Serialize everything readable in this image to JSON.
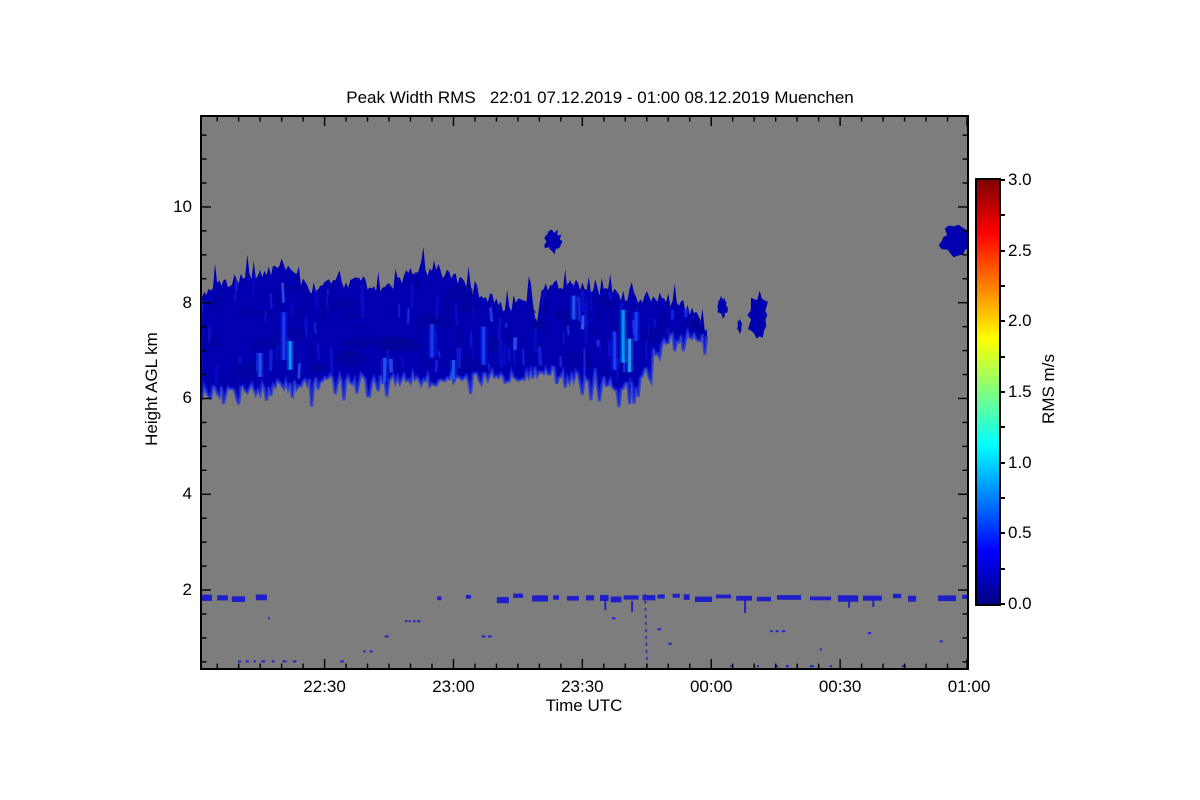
{
  "window": {
    "background": "#ffffff",
    "text_color": "#000000"
  },
  "chart_data": {
    "type": "heatmap",
    "title": "Peak Width RMS   22:01 07.12.2019 - 01:00 08.12.2019 Muenchen",
    "xlabel": "Time UTC",
    "ylabel": "Height AGL km",
    "x_start": "22:01 07.12.2019",
    "x_end": "01:00 08.12.2019",
    "site": "Muenchen",
    "quantity": "Peak Width RMS",
    "x_range_minutes_after_2200": [
      1,
      180
    ],
    "x_ticks": [
      {
        "label": "22:30",
        "minutes_after_2200": 30
      },
      {
        "label": "23:00",
        "minutes_after_2200": 60
      },
      {
        "label": "23:30",
        "minutes_after_2200": 90
      },
      {
        "label": "00:00",
        "minutes_after_2200": 120
      },
      {
        "label": "00:30",
        "minutes_after_2200": 150
      },
      {
        "label": "01:00",
        "minutes_after_2200": 180
      }
    ],
    "x_minor_tick_step_min": 5,
    "y_range_km": [
      0.33,
      11.92
    ],
    "y_ticks": [
      2,
      4,
      6,
      8,
      10
    ],
    "y_minor_tick_step_km": 0.5,
    "grid": false,
    "legend": "colorbar right",
    "no_data_color": "#7d7d7d",
    "colorbar": {
      "label": "RMS m/s",
      "range": [
        0.0,
        3.0
      ],
      "ticks": [
        "0.0",
        "0.5",
        "1.0",
        "1.5",
        "2.0",
        "2.5",
        "3.0"
      ],
      "minor_tick_step": 0.25,
      "colormap": "jet",
      "gradient_stops": [
        {
          "pos": 0.0,
          "color": "#000083"
        },
        {
          "pos": 0.125,
          "color": "#0000ff"
        },
        {
          "pos": 0.375,
          "color": "#00ffff"
        },
        {
          "pos": 0.625,
          "color": "#ffff00"
        },
        {
          "pos": 0.875,
          "color": "#ff0000"
        },
        {
          "pos": 1.0,
          "color": "#800000"
        }
      ]
    },
    "features": {
      "description": "Cirrus-like cloud layer 6.1-8.9 km AGL from 22:01 to ~00:00 with Peak Width RMS mostly 0.0-0.5 m/s (dark blue), detached cloud patches near 7.8 km (00:00-00:12) and 9.3 km (23:23 and ~00:56-01:00), thin boundary-layer echo near 1.8 km, scattered specks below 1.5 km; gray = no data",
      "main_cloud": {
        "time_span_min": [
          1,
          119
        ],
        "height_span_km": [
          6.1,
          8.9
        ],
        "value_range_ms": [
          0.0,
          0.6
        ],
        "base_color": "#0000b0",
        "fringe_color": "#1e32e6",
        "top_profile": [
          [
            1,
            8.05
          ],
          [
            3,
            8.3
          ],
          [
            6,
            8.4
          ],
          [
            9,
            8.5
          ],
          [
            12,
            8.55
          ],
          [
            15,
            8.6
          ],
          [
            18,
            8.7
          ],
          [
            20,
            8.85
          ],
          [
            22,
            8.6
          ],
          [
            25,
            8.42
          ],
          [
            27,
            8.3
          ],
          [
            30,
            8.36
          ],
          [
            33,
            8.46
          ],
          [
            36,
            8.4
          ],
          [
            39,
            8.44
          ],
          [
            42,
            8.3
          ],
          [
            45,
            8.34
          ],
          [
            48,
            8.52
          ],
          [
            50,
            8.66
          ],
          [
            52,
            8.7
          ],
          [
            55,
            8.64
          ],
          [
            58,
            8.58
          ],
          [
            61,
            8.5
          ],
          [
            64,
            8.3
          ],
          [
            67,
            8.05
          ],
          [
            69,
            8.12
          ],
          [
            71,
            7.95
          ],
          [
            74,
            7.86
          ],
          [
            76,
            8.06
          ],
          [
            78,
            8.15
          ],
          [
            79.5,
            7.62
          ],
          [
            81,
            8.28
          ],
          [
            83,
            8.34
          ],
          [
            85,
            8.42
          ],
          [
            87,
            8.3
          ],
          [
            89,
            8.38
          ],
          [
            91,
            8.33
          ],
          [
            93,
            8.2
          ],
          [
            95,
            8.32
          ],
          [
            97,
            8.28
          ],
          [
            99,
            8.12
          ],
          [
            101,
            8.2
          ],
          [
            103,
            8.05
          ],
          [
            105,
            8.15
          ],
          [
            107,
            7.98
          ],
          [
            109,
            8.05
          ],
          [
            111,
            7.9
          ],
          [
            113,
            7.98
          ],
          [
            115,
            7.85
          ],
          [
            117,
            7.7
          ],
          [
            119,
            7.45
          ]
        ],
        "bottom_profile": [
          [
            1,
            6.2
          ],
          [
            3,
            6.1
          ],
          [
            6,
            6.18
          ],
          [
            9,
            6.15
          ],
          [
            12,
            6.22
          ],
          [
            15,
            6.2
          ],
          [
            18,
            6.25
          ],
          [
            21,
            6.32
          ],
          [
            24,
            6.3
          ],
          [
            27,
            6.35
          ],
          [
            30,
            6.4
          ],
          [
            33,
            6.42
          ],
          [
            36,
            6.38
          ],
          [
            39,
            6.42
          ],
          [
            42,
            6.4
          ],
          [
            45,
            6.45
          ],
          [
            48,
            6.4
          ],
          [
            51,
            6.42
          ],
          [
            54,
            6.38
          ],
          [
            57,
            6.42
          ],
          [
            60,
            6.4
          ],
          [
            63,
            6.45
          ],
          [
            66,
            6.42
          ],
          [
            69,
            6.5
          ],
          [
            72,
            6.45
          ],
          [
            75,
            6.5
          ],
          [
            77,
            6.45
          ],
          [
            79,
            6.55
          ],
          [
            81,
            6.5
          ],
          [
            83,
            6.6
          ],
          [
            85,
            6.45
          ],
          [
            87,
            6.55
          ],
          [
            89,
            6.45
          ],
          [
            91,
            6.35
          ],
          [
            93,
            6.55
          ],
          [
            95,
            6.4
          ],
          [
            97,
            6.25
          ],
          [
            99,
            6.3
          ],
          [
            101,
            6.25
          ],
          [
            103,
            6.35
          ],
          [
            105,
            6.7
          ],
          [
            107,
            7.0
          ],
          [
            109,
            7.2
          ],
          [
            111,
            7.35
          ],
          [
            113,
            7.2
          ],
          [
            115,
            7.4
          ],
          [
            117,
            7.25
          ],
          [
            119,
            7.3
          ]
        ]
      },
      "inner_streaks": [
        {
          "t": 20.5,
          "h": 7.3,
          "len": 1.0,
          "color": "#1e46ff"
        },
        {
          "t": 15,
          "h": 6.7,
          "len": 0.5,
          "color": "#2860ff"
        },
        {
          "t": 22,
          "h": 6.9,
          "len": 0.6,
          "color": "#00b4ff"
        },
        {
          "t": 44,
          "h": 6.6,
          "len": 0.5,
          "color": "#2860ff"
        },
        {
          "t": 55,
          "h": 7.2,
          "len": 0.7,
          "color": "#1e46ff"
        },
        {
          "t": 60,
          "h": 6.6,
          "len": 0.4,
          "color": "#2860ff"
        },
        {
          "t": 67,
          "h": 7.1,
          "len": 0.8,
          "color": "#1e46ff"
        },
        {
          "t": 88,
          "h": 7.9,
          "len": 0.5,
          "color": "#2860ff"
        },
        {
          "t": 97.5,
          "h": 7.0,
          "len": 0.8,
          "color": "#1e46ff"
        },
        {
          "t": 99.5,
          "h": 7.3,
          "len": 1.1,
          "color": "#00b4ff"
        },
        {
          "t": 101,
          "h": 6.9,
          "len": 0.7,
          "color": "#28b4ff"
        },
        {
          "t": 102.5,
          "h": 7.5,
          "len": 0.6,
          "color": "#1e46ff"
        }
      ],
      "detached_blobs": [
        {
          "t": 83.2,
          "h": 9.28,
          "rt": 2.0,
          "rh": 0.22
        },
        {
          "t": 87.2,
          "h": 8.3,
          "rt": 0.9,
          "rh": 0.14
        },
        {
          "t": 100.7,
          "h": 7.7,
          "rt": 0.6,
          "rh": 0.22
        },
        {
          "t": 122.5,
          "h": 7.91,
          "rt": 1.3,
          "rh": 0.2
        },
        {
          "t": 126.6,
          "h": 7.51,
          "rt": 0.5,
          "rh": 0.14
        },
        {
          "t": 130.9,
          "h": 7.74,
          "rt": 2.3,
          "rh": 0.44
        },
        {
          "t": 177.0,
          "h": 9.3,
          "rt": 3.5,
          "rh": 0.29
        }
      ],
      "low_level_layer": {
        "height_km": 1.83,
        "thickness_km": 0.12,
        "color": "#1a1ace",
        "segments_min": [
          [
            1,
            3.8
          ],
          [
            5,
            7.5
          ],
          [
            8.4,
            11.5
          ],
          [
            14,
            16.6
          ],
          [
            56.2,
            57.2
          ],
          [
            62.9,
            64.1
          ],
          [
            70.1,
            72.9
          ],
          [
            73.9,
            76.2
          ],
          [
            78.3,
            82
          ],
          [
            83.2,
            84.6
          ],
          [
            86.4,
            89.2
          ],
          [
            90.8,
            92.7
          ],
          [
            94.1,
            96.1
          ],
          [
            96.6,
            99.1
          ],
          [
            99.6,
            103.1
          ],
          [
            104,
            107
          ],
          [
            107.5,
            109.2
          ],
          [
            111,
            112.7
          ],
          [
            113.6,
            115
          ],
          [
            116.2,
            120.2
          ],
          [
            121.1,
            124.6
          ],
          [
            125.8,
            129.5
          ],
          [
            130.6,
            133.9
          ],
          [
            135.3,
            140.9
          ],
          [
            143,
            147.9
          ],
          [
            149.5,
            154.2
          ],
          [
            155.3,
            159.7
          ],
          [
            162.3,
            164.2
          ],
          [
            165.8,
            167.7
          ],
          [
            172.8,
            177
          ],
          [
            178.4,
            179.8
          ]
        ]
      },
      "virga_streak": {
        "t": 104.6,
        "h_top": 1.92,
        "h_bottom": 0.35
      },
      "specks": [
        [
          16.8,
          1.43
        ],
        [
          48.7,
          1.37
        ],
        [
          49.6,
          1.37
        ],
        [
          50.6,
          1.37
        ],
        [
          51.5,
          1.37
        ],
        [
          44,
          1.05
        ],
        [
          66.6,
          1.05
        ],
        [
          68,
          1.05
        ],
        [
          39,
          0.74
        ],
        [
          40.5,
          0.74
        ],
        [
          9.8,
          0.53
        ],
        [
          11.6,
          0.53
        ],
        [
          13.5,
          0.53
        ],
        [
          15.3,
          0.53
        ],
        [
          17.7,
          0.53
        ],
        [
          20.2,
          0.53
        ],
        [
          22.6,
          0.53
        ],
        [
          33.6,
          0.53
        ],
        [
          96.9,
          1.43
        ],
        [
          107.5,
          1.2
        ],
        [
          110,
          0.9
        ],
        [
          133.7,
          1.16
        ],
        [
          135,
          1.16
        ],
        [
          136.4,
          1.16
        ],
        [
          156.5,
          1.12
        ],
        [
          145.3,
          0.78
        ],
        [
          164.4,
          0.43
        ],
        [
          124.4,
          0.43
        ],
        [
          130.6,
          0.43
        ],
        [
          134.8,
          0.43
        ],
        [
          137.4,
          0.43
        ],
        [
          143,
          0.43
        ],
        [
          147.6,
          0.43
        ],
        [
          173.2,
          0.95
        ]
      ]
    }
  }
}
